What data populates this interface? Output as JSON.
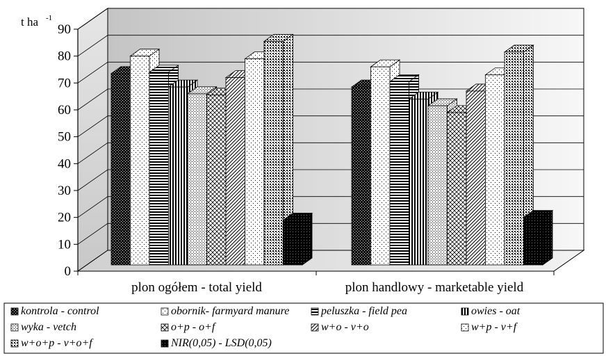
{
  "chart_data": {
    "type": "bar",
    "three_d": true,
    "ylabel": "t ha",
    "ylabel_superscript": "-1",
    "ylim": [
      0,
      90
    ],
    "ytick_step": 10,
    "yticks": [
      "0",
      "10",
      "20",
      "30",
      "40",
      "50",
      "60",
      "70",
      "80",
      "90"
    ],
    "grid": true,
    "legend_position": "bottom",
    "categories": [
      "plon ogółem - total yield",
      "plon handlowy - marketable yield"
    ],
    "series": [
      {
        "name": "kontrola - control",
        "values": [
          73.5,
          68.5
        ]
      },
      {
        "name": "obornik- farmyard manure",
        "values": [
          80.0,
          76.0
        ]
      },
      {
        "name": "peluszka - field pea",
        "values": [
          74.0,
          70.5
        ]
      },
      {
        "name": "owies - oat",
        "values": [
          68.5,
          64.0
        ]
      },
      {
        "name": "wyka - vetch",
        "values": [
          66.0,
          61.5
        ]
      },
      {
        "name": "o+p - o+f",
        "values": [
          65.5,
          59.0
        ]
      },
      {
        "name": "w+o - v+o",
        "values": [
          72.0,
          67.0
        ]
      },
      {
        "name": "w+p - v+f",
        "values": [
          79.0,
          73.0
        ]
      },
      {
        "name": "w+o+p - v+o+f",
        "values": [
          85.5,
          81.5
        ]
      },
      {
        "name": "NIR(0,05) - LSD(0,05)",
        "values": [
          19.0,
          20.0
        ]
      }
    ]
  },
  "colors": {
    "plot_background": "#dcdcdc",
    "bar_pattern_dark": "#000000",
    "bar_pattern_light": "#ffffff",
    "gridline": "#000000"
  }
}
